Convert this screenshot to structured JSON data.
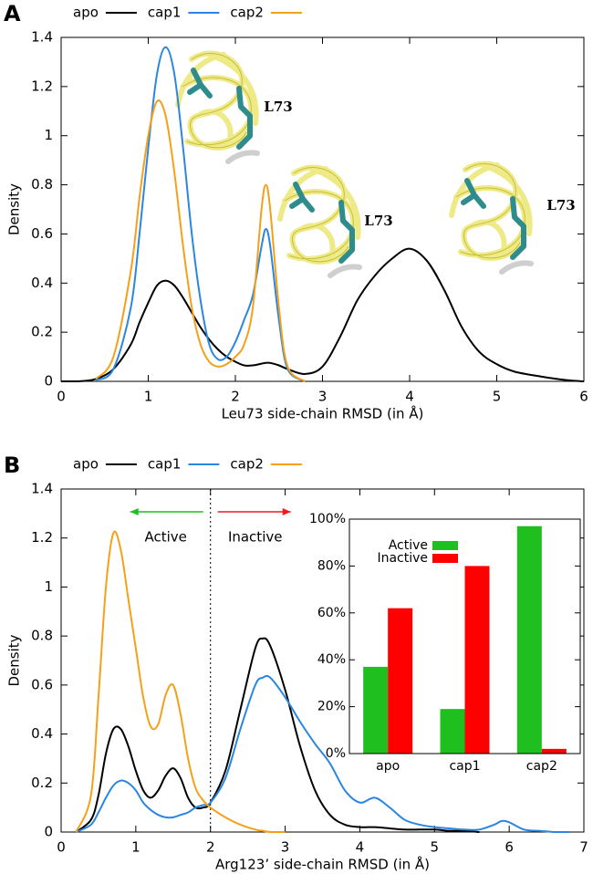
{
  "chart_data": [
    {
      "type": "line",
      "panel_label": "A",
      "ylabel": "Density",
      "xlabel": "Leu73 side-chain RMSD (in Å)",
      "xlim": [
        0,
        6
      ],
      "xticks": [
        0,
        1,
        2,
        3,
        4,
        5,
        6
      ],
      "ylim": [
        0,
        1.4
      ],
      "yticks": [
        0,
        0.2,
        0.4,
        0.6,
        0.8,
        1,
        1.2,
        1.4
      ],
      "legend": "top",
      "annotations": [
        "L73",
        "L73",
        "L73"
      ],
      "x": [
        0,
        0.2,
        0.4,
        0.6,
        0.8,
        0.9,
        1.0,
        1.1,
        1.2,
        1.3,
        1.4,
        1.5,
        1.6,
        1.7,
        1.8,
        1.9,
        2.0,
        2.1,
        2.2,
        2.3,
        2.35,
        2.4,
        2.5,
        2.6,
        2.8,
        3.0,
        3.2,
        3.4,
        3.6,
        3.8,
        4.0,
        4.2,
        4.4,
        4.6,
        4.8,
        5.0,
        5.2,
        5.5,
        5.8,
        6.0
      ],
      "series": [
        {
          "name": "apo",
          "color": "#000000",
          "values": [
            0,
            0,
            0.01,
            0.05,
            0.15,
            0.24,
            0.32,
            0.39,
            0.41,
            0.39,
            0.34,
            0.28,
            0.22,
            0.17,
            0.13,
            0.1,
            0.08,
            0.065,
            0.065,
            0.072,
            0.075,
            0.075,
            0.065,
            0.05,
            0.03,
            0.06,
            0.18,
            0.33,
            0.43,
            0.5,
            0.54,
            0.49,
            0.37,
            0.22,
            0.12,
            0.07,
            0.04,
            0.02,
            0.005,
            0
          ]
        },
        {
          "name": "cap1",
          "color": "#2a86e0",
          "values": [
            null,
            null,
            0.005,
            0.05,
            0.3,
            0.6,
            0.95,
            1.25,
            1.36,
            1.25,
            0.95,
            0.6,
            0.33,
            0.15,
            0.09,
            0.1,
            0.16,
            0.25,
            0.35,
            0.55,
            0.62,
            0.55,
            0.25,
            0.05,
            0,
            null,
            null,
            null,
            null,
            null,
            null,
            null,
            null,
            null,
            null,
            null,
            null,
            null,
            null,
            null
          ]
        },
        {
          "name": "cap2",
          "color": "#f5a01a",
          "values": [
            null,
            null,
            0.01,
            0.1,
            0.45,
            0.75,
            1.0,
            1.14,
            1.08,
            0.85,
            0.55,
            0.3,
            0.15,
            0.08,
            0.06,
            0.07,
            0.1,
            0.15,
            0.3,
            0.7,
            0.8,
            0.7,
            0.3,
            0.06,
            0,
            null,
            null,
            null,
            null,
            null,
            null,
            null,
            null,
            null,
            null,
            null,
            null,
            null,
            null,
            null
          ]
        }
      ]
    },
    {
      "type": "line",
      "panel_label": "B",
      "ylabel": "Density",
      "xlabel": "Arg123’ side-chain RMSD (in Å)",
      "xlim": [
        0,
        7
      ],
      "xticks": [
        0,
        1,
        2,
        3,
        4,
        5,
        6,
        7
      ],
      "ylim": [
        0,
        1.4
      ],
      "yticks": [
        0,
        0.2,
        0.4,
        0.6,
        0.8,
        1,
        1.2,
        1.4
      ],
      "legend": "top",
      "vline": 2,
      "regions": [
        {
          "text": "Active",
          "color": "#1fbf1f"
        },
        {
          "text": "Inactive",
          "color": "#f01a1a"
        }
      ],
      "x": [
        0,
        0.2,
        0.4,
        0.5,
        0.6,
        0.7,
        0.8,
        0.9,
        1.0,
        1.1,
        1.2,
        1.3,
        1.4,
        1.5,
        1.6,
        1.7,
        1.8,
        1.9,
        2.0,
        2.2,
        2.4,
        2.6,
        2.7,
        2.8,
        3.0,
        3.2,
        3.4,
        3.6,
        3.8,
        4.0,
        4.2,
        4.4,
        4.6,
        4.8,
        5.0,
        5.2,
        5.4,
        5.6,
        5.8,
        5.9,
        6.0,
        6.2,
        6.4,
        6.6,
        6.8,
        7.0
      ],
      "series": [
        {
          "name": "apo",
          "color": "#000000",
          "values": [
            null,
            0,
            0.05,
            0.15,
            0.32,
            0.42,
            0.42,
            0.35,
            0.25,
            0.17,
            0.14,
            0.17,
            0.23,
            0.26,
            0.22,
            0.14,
            0.1,
            0.1,
            0.12,
            0.25,
            0.5,
            0.75,
            0.79,
            0.76,
            0.58,
            0.35,
            0.17,
            0.07,
            0.03,
            0.02,
            0.02,
            0.015,
            0.01,
            0.01,
            0.01,
            0.005,
            0.005,
            0,
            null,
            null,
            null,
            null,
            null,
            null,
            null,
            null
          ]
        },
        {
          "name": "cap1",
          "color": "#2a86e0",
          "values": [
            null,
            0,
            0.03,
            0.08,
            0.14,
            0.19,
            0.21,
            0.2,
            0.17,
            0.12,
            0.09,
            0.07,
            0.06,
            0.06,
            0.07,
            0.08,
            0.1,
            0.11,
            0.12,
            0.22,
            0.42,
            0.6,
            0.63,
            0.63,
            0.55,
            0.45,
            0.36,
            0.28,
            0.17,
            0.12,
            0.14,
            0.1,
            0.05,
            0.03,
            0.02,
            0.015,
            0.01,
            0.01,
            0.03,
            0.045,
            0.04,
            0.01,
            0.005,
            0,
            0,
            null
          ]
        },
        {
          "name": "cap2",
          "color": "#f5a01a",
          "values": [
            null,
            0,
            0.15,
            0.55,
            1.0,
            1.22,
            1.15,
            0.95,
            0.75,
            0.55,
            0.43,
            0.44,
            0.56,
            0.6,
            0.48,
            0.3,
            0.18,
            0.13,
            0.1,
            0.06,
            0.03,
            0.01,
            0.005,
            0,
            0,
            null,
            null,
            null,
            null,
            null,
            null,
            null,
            null,
            null,
            null,
            null,
            null,
            null,
            null,
            null,
            null,
            null,
            null,
            null,
            null,
            null
          ]
        }
      ]
    },
    {
      "type": "bar",
      "legend": "top-left",
      "categories": [
        "apo",
        "cap1",
        "cap2"
      ],
      "ylim": [
        0,
        100
      ],
      "yticks": [
        {
          "value": 0,
          "label": "0%"
        },
        {
          "value": 20,
          "label": "20%"
        },
        {
          "value": 40,
          "label": "40%"
        },
        {
          "value": 60,
          "label": "60%"
        },
        {
          "value": 80,
          "label": "80%"
        },
        {
          "value": 100,
          "label": "100%"
        }
      ],
      "series": [
        {
          "name": "Active",
          "color": "#1fbf1f",
          "values": [
            37,
            19,
            97
          ]
        },
        {
          "name": "Inactive",
          "color": "#ff0000",
          "values": [
            62,
            80,
            2
          ]
        }
      ]
    }
  ]
}
